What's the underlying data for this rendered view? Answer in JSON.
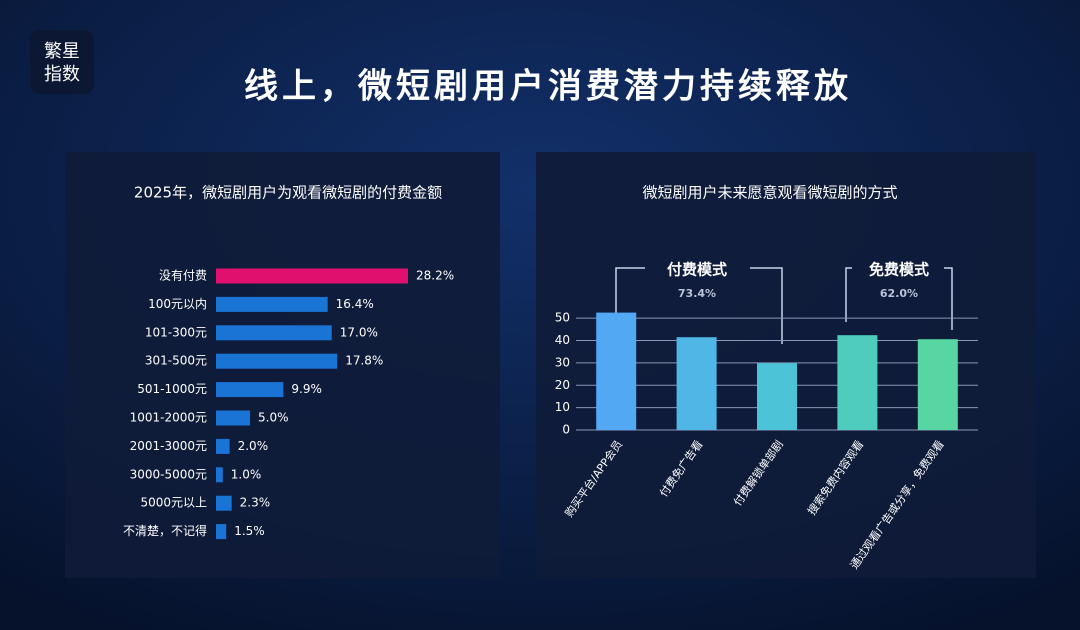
{
  "logo": {
    "line1": "繁星",
    "line2": "指数"
  },
  "header": {
    "title": "线上，微短剧用户消费潜力持续释放"
  },
  "chart_data": [
    {
      "type": "hbar",
      "title": "2025年，微短剧用户为观看微短剧的付费金额",
      "categories": [
        "没有付费",
        "100元以内",
        "101-300元",
        "301-500元",
        "501-1000元",
        "1001-2000元",
        "2001-3000元",
        "3000-5000元",
        "5000元以上",
        "不清楚，不记得"
      ],
      "values": [
        28.2,
        16.4,
        17.0,
        17.8,
        9.9,
        5.0,
        2.0,
        1.0,
        2.3,
        1.5
      ],
      "value_labels": [
        "28.2%",
        "16.4%",
        "17.0%",
        "17.8%",
        "9.9%",
        "5.0%",
        "2.0%",
        "1.0%",
        "2.3%",
        "1.5%"
      ],
      "colors": [
        "#e0106e",
        "#1a74d6",
        "#1a74d6",
        "#1a74d6",
        "#1a74d6",
        "#1a74d6",
        "#1a74d6",
        "#1a74d6",
        "#1a74d6",
        "#1a74d6"
      ]
    },
    {
      "type": "bar",
      "title": "微短剧用户未来愿意观看微短剧的方式",
      "categories": [
        "购买平台/APP会员",
        "付费免广告看",
        "付费解锁单部剧",
        "搜索免费内容观看",
        "通过观看广告或分享，免费观看"
      ],
      "values": [
        52.5,
        41.5,
        29.9,
        42.4,
        40.6
      ],
      "colors": [
        "#52a8f2",
        "#4fb6e6",
        "#4cc3d6",
        "#4fccbc",
        "#58d6a2"
      ],
      "ylim": [
        0,
        55
      ],
      "yticks": [
        0,
        10,
        20,
        30,
        40,
        50
      ],
      "grid": true,
      "groups": [
        {
          "label": "付费模式",
          "value": 73.4,
          "value_label": "73.4%"
        },
        {
          "label": "免费模式",
          "value": 62.0,
          "value_label": "62.0%"
        }
      ]
    }
  ]
}
